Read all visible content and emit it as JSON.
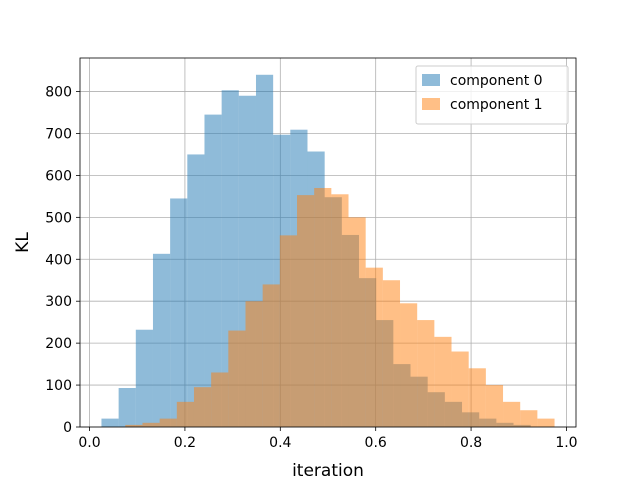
{
  "chart_data": {
    "type": "bar",
    "subtype": "histogram",
    "title": "",
    "xlabel": "iteration",
    "ylabel": "KL",
    "xlim": [
      -0.02,
      1.02
    ],
    "ylim": [
      0,
      880
    ],
    "xticks": [
      0.0,
      0.2,
      0.4,
      0.6,
      0.8,
      1.0
    ],
    "xtick_labels": [
      "0.0",
      "0.2",
      "0.4",
      "0.6",
      "0.8",
      "1.0"
    ],
    "yticks": [
      0,
      100,
      200,
      300,
      400,
      500,
      600,
      700,
      800
    ],
    "ytick_labels": [
      "0",
      "100",
      "200",
      "300",
      "400",
      "500",
      "600",
      "700",
      "800"
    ],
    "grid": true,
    "legend_position": "top-right",
    "series": [
      {
        "name": "component 0",
        "color": "#1f77b4",
        "alpha": 0.5,
        "bin_edges": [
          0.025,
          0.061,
          0.097,
          0.133,
          0.169,
          0.205,
          0.241,
          0.277,
          0.313,
          0.349,
          0.385,
          0.421,
          0.457,
          0.493,
          0.529,
          0.565,
          0.601,
          0.637,
          0.673,
          0.709,
          0.745,
          0.781,
          0.817,
          0.853,
          0.889,
          0.925
        ],
        "values": [
          20,
          93,
          232,
          413,
          545,
          650,
          745,
          803,
          790,
          840,
          697,
          709,
          657,
          548,
          458,
          355,
          255,
          150,
          120,
          83,
          60,
          35,
          20,
          10,
          5
        ]
      },
      {
        "name": "component 1",
        "color": "#ff7f0e",
        "alpha": 0.5,
        "bin_edges": [
          0.075,
          0.111,
          0.147,
          0.183,
          0.219,
          0.255,
          0.291,
          0.327,
          0.363,
          0.399,
          0.435,
          0.471,
          0.507,
          0.543,
          0.579,
          0.615,
          0.651,
          0.687,
          0.723,
          0.759,
          0.795,
          0.831,
          0.867,
          0.903,
          0.939,
          0.975
        ],
        "values": [
          5,
          10,
          20,
          60,
          95,
          130,
          230,
          300,
          340,
          457,
          553,
          570,
          555,
          500,
          380,
          350,
          295,
          255,
          215,
          180,
          140,
          100,
          60,
          40,
          20
        ]
      }
    ]
  }
}
